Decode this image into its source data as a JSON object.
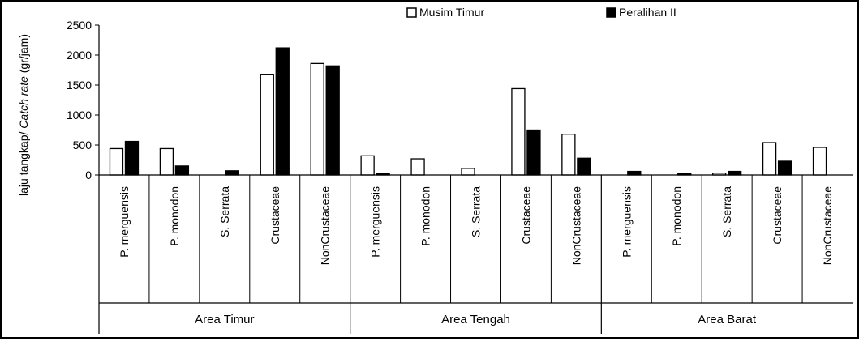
{
  "chart_data": {
    "type": "bar",
    "ylabel_parts": [
      "laju tangkap/ ",
      "Catch rate",
      " (gr/jam)"
    ],
    "ylim": [
      0,
      2500
    ],
    "yticks": [
      0,
      500,
      1000,
      1500,
      2000,
      2500
    ],
    "grid": false,
    "legend_position": "top",
    "groups": [
      {
        "name": "Area Timur",
        "categories": [
          "P. merguensis",
          "P. monodon",
          "S. Serrata",
          "Crustaceae",
          "NonCrustaceae"
        ]
      },
      {
        "name": "Area Tengah",
        "categories": [
          "P. merguensis",
          "P. monodon",
          "S. Serrata",
          "Crustaceae",
          "NonCrustaceae"
        ]
      },
      {
        "name": "Area Barat",
        "categories": [
          "P. merguensis",
          "P. monodon",
          "S. Serrata",
          "Crustaceae",
          "NonCrustaceae"
        ]
      }
    ],
    "series": [
      {
        "name": "Musim Timur",
        "color": "#ffffff",
        "values": [
          440,
          440,
          0,
          1680,
          1860,
          320,
          270,
          110,
          1440,
          680,
          0,
          0,
          30,
          540,
          460
        ]
      },
      {
        "name": "Peralihan II",
        "color": "#000000",
        "values": [
          560,
          150,
          70,
          2120,
          1820,
          30,
          0,
          0,
          750,
          280,
          60,
          30,
          60,
          230,
          0
        ]
      }
    ]
  }
}
